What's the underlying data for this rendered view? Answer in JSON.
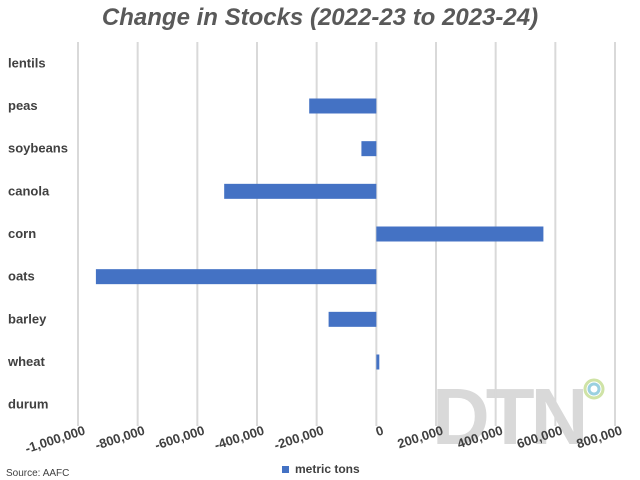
{
  "chart_data": {
    "type": "bar",
    "orientation": "horizontal",
    "title": "Change in Stocks (2022-23 to 2023-24)",
    "categories": [
      "lentils",
      "peas",
      "soybeans",
      "canola",
      "corn",
      "oats",
      "barley",
      "wheat",
      "durum"
    ],
    "series": [
      {
        "name": "metric tons",
        "color": "#4472c4",
        "values": [
          0,
          -225000,
          -50000,
          -510000,
          560000,
          -940000,
          -160000,
          10000,
          0
        ]
      }
    ],
    "xlim": [
      -1000000,
      800000
    ],
    "xticks": [
      -1000000,
      -800000,
      -600000,
      -400000,
      -200000,
      0,
      200000,
      400000,
      600000,
      800000
    ],
    "xtick_labels": [
      "-1,000,000",
      "-800,000",
      "-600,000",
      "-400,000",
      "-200,000",
      "0",
      "200,000",
      "400,000",
      "600,000",
      "800,000"
    ],
    "grid": true,
    "legend_position": "bottom"
  },
  "source": "Source: AAFC",
  "watermark": "DTN"
}
